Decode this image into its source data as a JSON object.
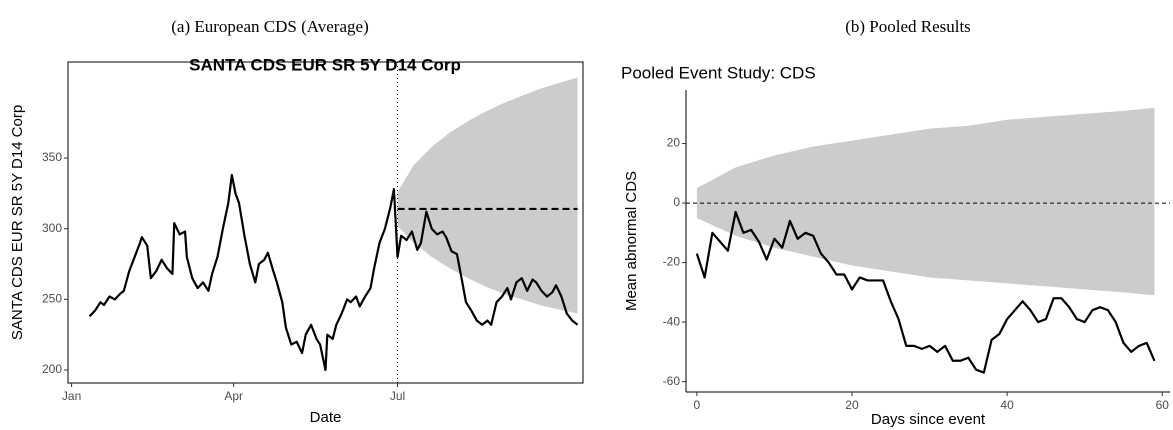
{
  "chart_data": [
    {
      "type": "line",
      "caption": "(a) European CDS (Average)",
      "title": "SANTA CDS EUR SR 5Y D14 Corp",
      "title_bold": true,
      "xlabel": "Date",
      "ylabel": "SANTA CDS EUR SR 5Y D14 Corp",
      "frame": "box",
      "xlim": [
        -2,
        284
      ],
      "ylim": [
        190.8,
        418
      ],
      "xticks": [
        {
          "value": 0,
          "label": "Jan"
        },
        {
          "value": 90,
          "label": "Apr"
        },
        {
          "value": 181,
          "label": "Jul"
        }
      ],
      "yticks": [
        200,
        250,
        300,
        350
      ],
      "vline": 181,
      "vline_dash": "1,3",
      "band": {
        "color": "#cccccc",
        "x": [
          181,
          190,
          200,
          210,
          220,
          230,
          240,
          250,
          260,
          270,
          281
        ],
        "upper": [
          326,
          345,
          358,
          368,
          376,
          383,
          389,
          394,
          399,
          403,
          407
        ],
        "lower": [
          302,
          290,
          280,
          272,
          265,
          259,
          254,
          250,
          246,
          243,
          240
        ]
      },
      "series": [
        {
          "color": "#000000",
          "dash": "none",
          "x": [
            10,
            13,
            16,
            18,
            21,
            24,
            27,
            29,
            32,
            35,
            38,
            39,
            42,
            44,
            47,
            50,
            53,
            56,
            57,
            60,
            63,
            64,
            67,
            70,
            73,
            76,
            78,
            81,
            84,
            87,
            89,
            91,
            93,
            96,
            99,
            102,
            104,
            107,
            109,
            112,
            114,
            117,
            119,
            122,
            125,
            128,
            130,
            133,
            136,
            138,
            141,
            142,
            145,
            147,
            150,
            153,
            155,
            158,
            160,
            163,
            166,
            168,
            171,
            174,
            177,
            179,
            181,
            183,
            186,
            189,
            192,
            194,
            197,
            200,
            203,
            206,
            208,
            211,
            214,
            217,
            219,
            222,
            225,
            228,
            231,
            233,
            236,
            239,
            242,
            244,
            247,
            250,
            253,
            256,
            258,
            261,
            264,
            267,
            269,
            272,
            275,
            278,
            281
          ],
          "values": [
            238,
            242,
            248,
            246,
            252,
            250,
            254,
            256,
            270,
            280,
            290,
            294,
            288,
            265,
            270,
            278,
            272,
            268,
            304,
            296,
            298,
            280,
            265,
            258,
            262,
            256,
            268,
            280,
            300,
            318,
            338,
            325,
            318,
            295,
            275,
            262,
            275,
            278,
            283,
            270,
            262,
            248,
            230,
            218,
            220,
            212,
            225,
            232,
            222,
            218,
            200,
            225,
            222,
            232,
            240,
            250,
            248,
            252,
            245,
            252,
            258,
            272,
            290,
            300,
            315,
            328,
            280,
            295,
            292,
            298,
            285,
            290,
            312,
            300,
            296,
            298,
            294,
            284,
            282,
            262,
            248,
            242,
            235,
            232,
            235,
            232,
            248,
            252,
            258,
            250,
            262,
            265,
            256,
            264,
            262,
            256,
            252,
            255,
            260,
            252,
            240,
            235,
            232
          ]
        },
        {
          "color": "#000000",
          "dash": "7,4",
          "x": [
            181,
            281
          ],
          "values": [
            314,
            314
          ]
        }
      ]
    },
    {
      "type": "line",
      "caption": "(b) Pooled Results",
      "title": "Pooled Event Study: CDS",
      "title_bold": false,
      "xlabel": "Days since event",
      "ylabel": "Mean abnormal CDS",
      "frame": "axes",
      "xlim": [
        -1.4,
        61
      ],
      "ylim": [
        -63.5,
        38
      ],
      "xticks": [
        0,
        20,
        40,
        60
      ],
      "yticks": [
        -60,
        -40,
        -20,
        0,
        20
      ],
      "hline": 0,
      "hline_dash": "4,3",
      "band": {
        "color": "#cccccc",
        "x": [
          0,
          5,
          10,
          15,
          20,
          25,
          30,
          35,
          40,
          45,
          50,
          55,
          59
        ],
        "upper": [
          5,
          12,
          16,
          19,
          21,
          23,
          25,
          26,
          28,
          29,
          30,
          31,
          32
        ],
        "lower": [
          -5,
          -11,
          -15,
          -18,
          -21,
          -23,
          -25,
          -26,
          -27,
          -28,
          -29,
          -30,
          -31
        ]
      },
      "series": [
        {
          "color": "#000000",
          "dash": "none",
          "x": [
            0,
            1,
            2,
            3,
            4,
            5,
            6,
            7,
            8,
            9,
            10,
            11,
            12,
            13,
            14,
            15,
            16,
            17,
            18,
            19,
            20,
            21,
            22,
            23,
            24,
            25,
            26,
            27,
            28,
            29,
            30,
            31,
            32,
            33,
            34,
            35,
            36,
            37,
            38,
            39,
            40,
            41,
            42,
            43,
            44,
            45,
            46,
            47,
            48,
            49,
            50,
            51,
            52,
            53,
            54,
            55,
            56,
            57,
            58,
            59
          ],
          "values": [
            -17,
            -25,
            -10,
            -13,
            -16,
            -3,
            -10,
            -9,
            -13,
            -19,
            -12,
            -15,
            -6,
            -12,
            -10,
            -11,
            -17,
            -20,
            -24,
            -24,
            -29,
            -25,
            -26,
            -26,
            -26,
            -33,
            -39,
            -48,
            -48,
            -49,
            -48,
            -50,
            -48,
            -53,
            -53,
            -52,
            -56,
            -57,
            -46,
            -44,
            -39,
            -36,
            -33,
            -36,
            -40,
            -39,
            -32,
            -32,
            -35,
            -39,
            -40,
            -36,
            -35,
            -36,
            -40,
            -47,
            -50,
            -48,
            -47,
            -53
          ]
        }
      ]
    }
  ]
}
